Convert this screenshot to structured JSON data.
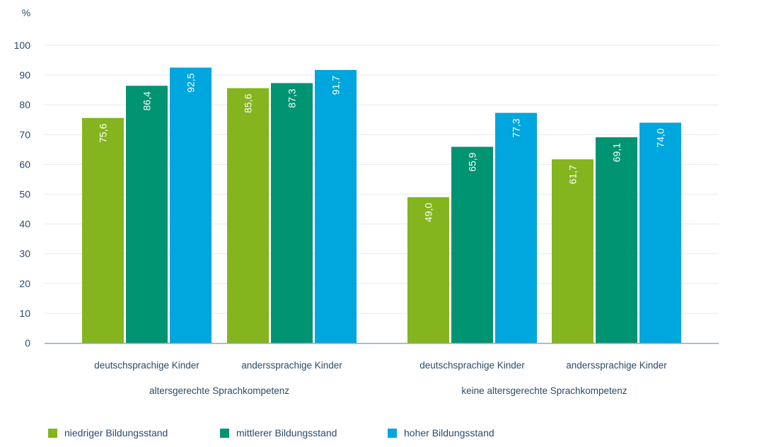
{
  "chart_data": {
    "type": "bar",
    "title": "",
    "ylabel": "%",
    "xlabel": "",
    "ylim": [
      0,
      100
    ],
    "yticks": [
      0,
      10,
      20,
      30,
      40,
      50,
      60,
      70,
      80,
      90,
      100
    ],
    "grid": true,
    "legend_position": "bottom-left",
    "groups": [
      {
        "label": "altersgerechte Sprachkompetenz",
        "categories": [
          "deutschsprachige Kinder",
          "anderssprachige Kinder"
        ]
      },
      {
        "label": "keine altersgerechte Sprachkompetenz",
        "categories": [
          "deutschsprachige Kinder",
          "anderssprachige Kinder"
        ]
      }
    ],
    "categories": [
      "deutschsprachige Kinder (altersgerechte Sprachkompetenz)",
      "anderssprachige Kinder (altersgerechte Sprachkompetenz)",
      "deutschsprachige Kinder (keine altersgerechte Sprachkompetenz)",
      "anderssprachige Kinder (keine altersgerechte Sprachkompetenz)"
    ],
    "series": [
      {
        "name": "niedriger Bildungsstand",
        "color": "#84b51e",
        "values": [
          75.6,
          85.6,
          49.0,
          61.7
        ],
        "labels": [
          "75,6",
          "85,6",
          "49,0",
          "61,7"
        ]
      },
      {
        "name": "mittlerer Bildungsstand",
        "color": "#009473",
        "values": [
          86.4,
          87.3,
          65.9,
          69.1
        ],
        "labels": [
          "86,4",
          "87,3",
          "65,9",
          "69,1"
        ]
      },
      {
        "name": "hoher Bildungsstand",
        "color": "#00a6de",
        "values": [
          92.5,
          91.7,
          77.3,
          74.0
        ],
        "labels": [
          "92,5",
          "91,7",
          "77,3",
          "74,0"
        ]
      }
    ]
  },
  "colors": {
    "axis_text": "#2b4a6b",
    "grid": "#e6e9ec",
    "axis_line": "#8fa8bc"
  }
}
